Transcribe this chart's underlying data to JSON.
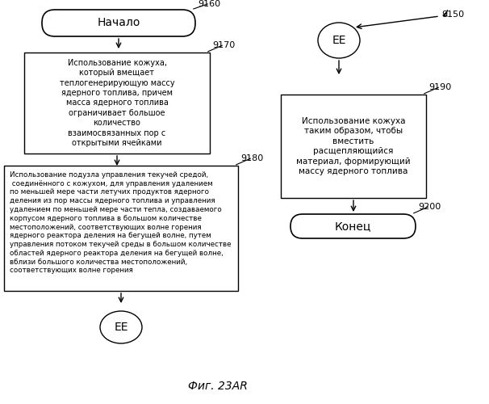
{
  "fig_label": "Фиг. 23AR",
  "background_color": "#ffffff",
  "text_color": "#000000",
  "left_column": {
    "start_label": "9160",
    "start_text": "Начало",
    "box1_label": "9170",
    "box1_text": "Использование кожуха,\nкоторый вмещает\nтеплогенерирующую массу\nядерного топлива, причем\nмасса ядерного топлива\nограничивает большое\nколичество\nвзаимосвязанных пор с\nоткрытыми ячейками",
    "box2_label": "9180",
    "box2_text": "Использование подузла управления текучей средой,\n соединённого с кожухом, для управления удалением\nпо меньшей мере части летучих продуктов ядерного\nделения из пор массы ядерного топлива и управления\nудалением по меньшей мере части тепла, создаваемого\nкорпусом ядерного топлива в большом количестве\nместоположений, соответствующих волне горения\nядерного реактора деления на бегущей волне, путем\nуправления потоком текучей среды в большом количестве\nобластей ядерного реактора деления на бегущей волне,\nвблизи большого количества местоположений,\nсоответствующих волне горения",
    "connector_label": "EE"
  },
  "right_column": {
    "connector_label": "EE",
    "connector_ref": "9150",
    "box1_label": "9190",
    "box1_text": "Использование кожуха\nтаким образом, чтобы\nвместить\nрасщепляющийся\nматериал, формирующий\nмассу ядерного топлива",
    "end_label": "9200",
    "end_text": "Конец"
  }
}
